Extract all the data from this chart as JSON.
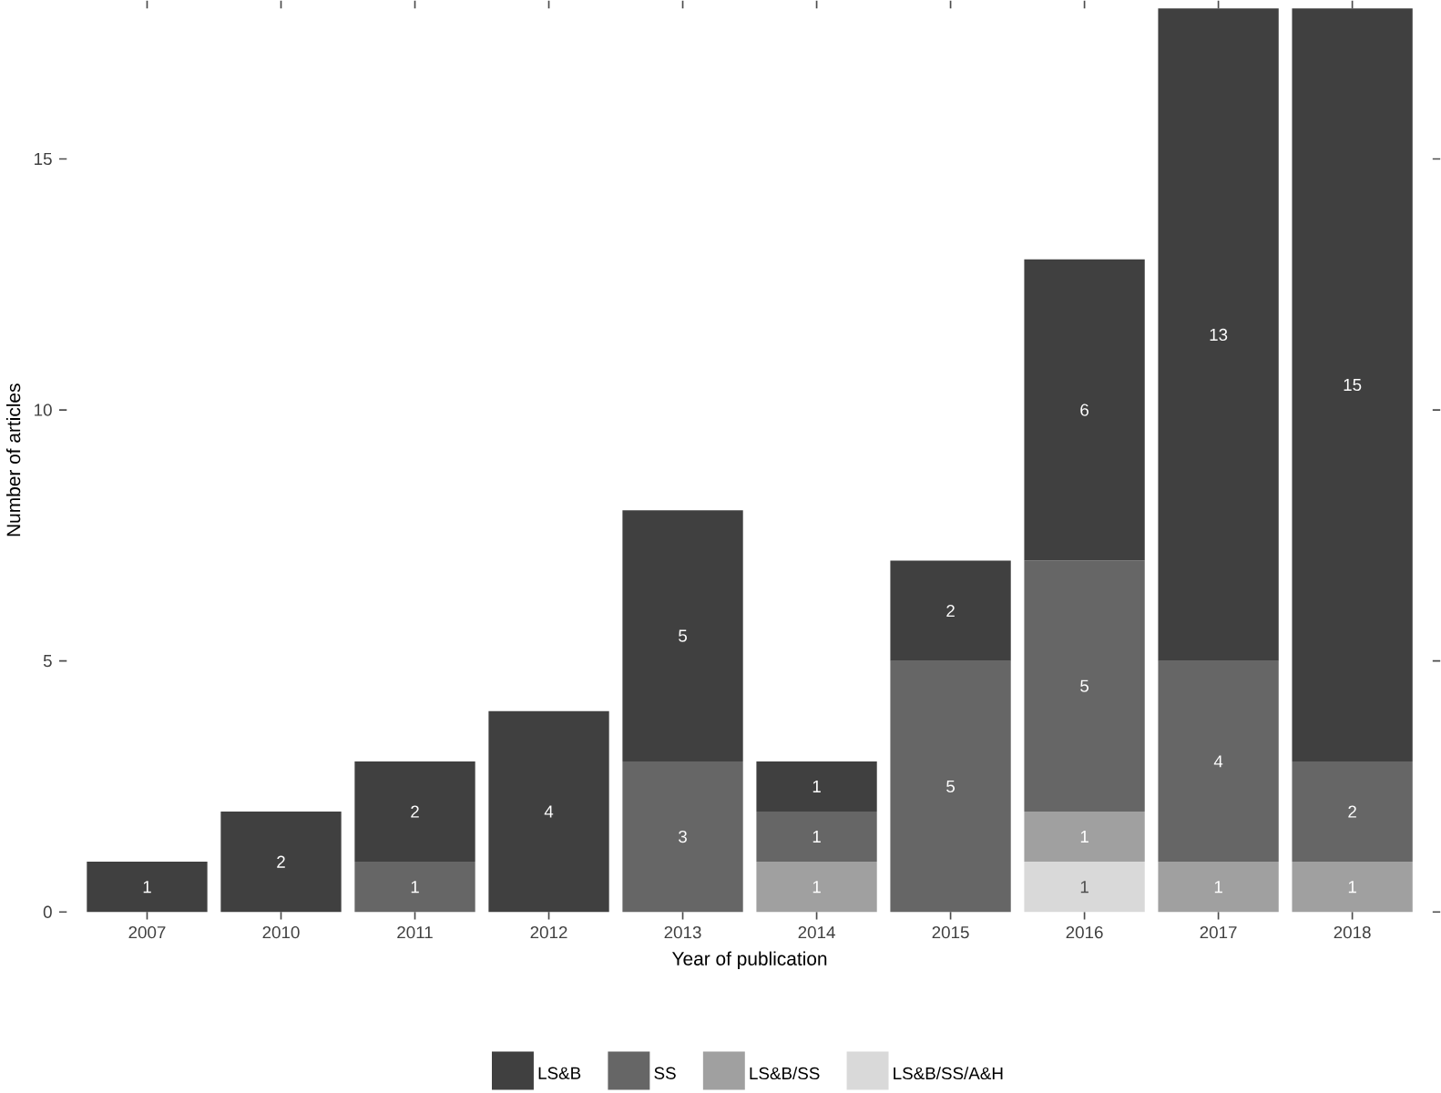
{
  "chart_data": {
    "type": "bar",
    "stacked": true,
    "xlabel": "Year of publication",
    "ylabel": "Number of articles",
    "categories": [
      "2007",
      "2010",
      "2011",
      "2012",
      "2013",
      "2014",
      "2015",
      "2016",
      "2017",
      "2018"
    ],
    "series": [
      {
        "name": "LS&B/SS/A&H",
        "color": "#d9d9d9",
        "values": [
          null,
          null,
          null,
          null,
          null,
          null,
          null,
          1,
          null,
          null
        ]
      },
      {
        "name": "LS&B/SS",
        "color": "#a0a0a0",
        "values": [
          null,
          null,
          null,
          null,
          null,
          1,
          null,
          1,
          1,
          1
        ]
      },
      {
        "name": "SS",
        "color": "#666666",
        "values": [
          null,
          null,
          1,
          null,
          3,
          1,
          5,
          5,
          4,
          2
        ]
      },
      {
        "name": "LS&B",
        "color": "#404040",
        "values": [
          1,
          2,
          2,
          4,
          5,
          1,
          2,
          6,
          13,
          15
        ]
      }
    ],
    "ylim": [
      0,
      18
    ],
    "yticks": [
      0,
      5,
      10,
      15
    ],
    "grid": false,
    "legend": "bottom",
    "data_labels": true
  }
}
